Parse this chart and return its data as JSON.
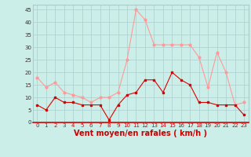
{
  "hours": [
    0,
    1,
    2,
    3,
    4,
    5,
    6,
    7,
    8,
    9,
    10,
    11,
    12,
    13,
    14,
    15,
    16,
    17,
    18,
    19,
    20,
    21,
    22,
    23
  ],
  "wind_avg": [
    7,
    5,
    10,
    8,
    8,
    7,
    7,
    7,
    1,
    7,
    11,
    12,
    17,
    17,
    12,
    20,
    17,
    15,
    8,
    8,
    7,
    7,
    7,
    3
  ],
  "wind_gust": [
    18,
    14,
    16,
    12,
    11,
    10,
    8,
    10,
    10,
    12,
    25,
    45,
    41,
    31,
    31,
    31,
    31,
    31,
    26,
    14,
    28,
    20,
    7,
    8
  ],
  "color_avg": "#dd0000",
  "color_gust": "#ff9999",
  "bg_color": "#cceee8",
  "grid_color": "#aacccc",
  "xlabel": "Vent moyen/en rafales ( km/h )",
  "xlabel_color": "#cc0000",
  "ylim": [
    0,
    47
  ],
  "yticks": [
    0,
    5,
    10,
    15,
    20,
    25,
    30,
    35,
    40,
    45
  ],
  "xlim": [
    -0.5,
    23.5
  ],
  "tick_fontsize": 5,
  "xlabel_fontsize": 7
}
